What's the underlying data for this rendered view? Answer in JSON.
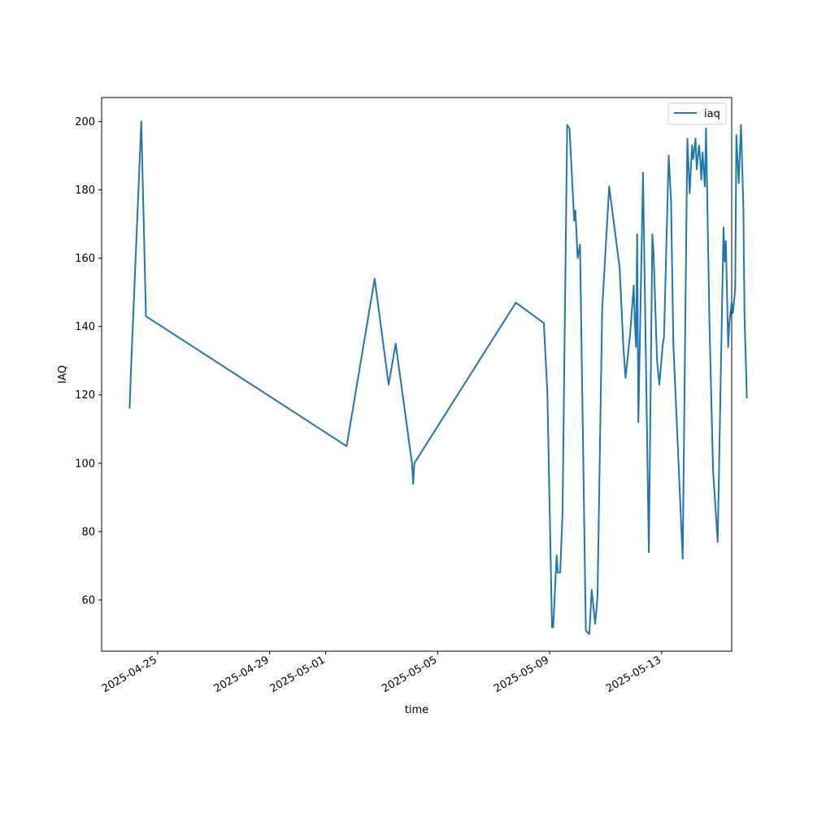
{
  "chart_data": {
    "type": "line",
    "xlabel": "time",
    "ylabel": "IAQ",
    "x_type": "time",
    "xlim": [
      "2025-04-23T00:00",
      "2025-05-15T12:00"
    ],
    "ylim": [
      45,
      207
    ],
    "xticks": [
      "2025-04-25",
      "2025-04-29",
      "2025-05-01",
      "2025-05-05",
      "2025-05-09",
      "2025-05-13"
    ],
    "yticks": [
      60,
      80,
      100,
      120,
      140,
      160,
      180,
      200
    ],
    "grid": false,
    "legend": {
      "position": "top-right",
      "entries": [
        "iaq"
      ]
    },
    "series": [
      {
        "name": "iaq",
        "color": "#1f77b4",
        "points": [
          [
            "2025-04-24T00:00",
            116
          ],
          [
            "2025-04-24T01:00",
            126
          ],
          [
            "2025-04-24T10:00",
            200
          ],
          [
            "2025-04-24T14:00",
            143
          ],
          [
            "2025-05-01T18:00",
            105
          ],
          [
            "2025-05-02T18:00",
            154
          ],
          [
            "2025-05-03T06:00",
            123
          ],
          [
            "2025-05-03T12:00",
            135
          ],
          [
            "2025-05-04T02:00",
            100
          ],
          [
            "2025-05-04T03:00",
            94
          ],
          [
            "2025-05-04T04:00",
            100
          ],
          [
            "2025-05-07T19:00",
            147
          ],
          [
            "2025-05-08T19:00",
            141
          ],
          [
            "2025-05-08T22:00",
            121
          ],
          [
            "2025-05-09T02:00",
            52
          ],
          [
            "2025-05-09T03:00",
            52
          ],
          [
            "2025-05-09T06:00",
            73
          ],
          [
            "2025-05-09T07:00",
            68
          ],
          [
            "2025-05-09T09:00",
            68
          ],
          [
            "2025-05-09T11:00",
            85
          ],
          [
            "2025-05-09T15:00",
            199
          ],
          [
            "2025-05-09T17:00",
            198
          ],
          [
            "2025-05-09T21:00",
            171
          ],
          [
            "2025-05-09T22:00",
            174
          ],
          [
            "2025-05-10T00:00",
            160
          ],
          [
            "2025-05-10T02:00",
            164
          ],
          [
            "2025-05-10T07:00",
            51
          ],
          [
            "2025-05-10T10:00",
            50
          ],
          [
            "2025-05-10T12:00",
            63
          ],
          [
            "2025-05-10T15:00",
            53
          ],
          [
            "2025-05-10T17:00",
            61
          ],
          [
            "2025-05-10T21:00",
            145
          ],
          [
            "2025-05-11T03:00",
            181
          ],
          [
            "2025-05-11T12:00",
            157
          ],
          [
            "2025-05-11T15:00",
            135
          ],
          [
            "2025-05-11T17:00",
            125
          ],
          [
            "2025-05-11T21:00",
            138
          ],
          [
            "2025-05-12T00:00",
            152
          ],
          [
            "2025-05-12T01:00",
            141
          ],
          [
            "2025-05-12T02:00",
            134
          ],
          [
            "2025-05-12T03:00",
            167
          ],
          [
            "2025-05-12T04:00",
            112
          ],
          [
            "2025-05-12T08:00",
            185
          ],
          [
            "2025-05-12T13:00",
            74
          ],
          [
            "2025-05-12T16:00",
            167
          ],
          [
            "2025-05-12T17:00",
            162
          ],
          [
            "2025-05-12T20:00",
            130
          ],
          [
            "2025-05-12T22:00",
            123
          ],
          [
            "2025-05-13T01:00",
            135
          ],
          [
            "2025-05-13T02:00",
            137
          ],
          [
            "2025-05-13T06:00",
            190
          ],
          [
            "2025-05-13T08:00",
            177
          ],
          [
            "2025-05-13T10:00",
            135
          ],
          [
            "2025-05-13T18:00",
            72
          ],
          [
            "2025-05-13T21:00",
            165
          ],
          [
            "2025-05-13T22:00",
            195
          ],
          [
            "2025-05-14T00:00",
            179
          ],
          [
            "2025-05-14T02:00",
            193
          ],
          [
            "2025-05-14T03:00",
            189
          ],
          [
            "2025-05-14T05:00",
            195
          ],
          [
            "2025-05-14T06:00",
            186
          ],
          [
            "2025-05-14T08:00",
            193
          ],
          [
            "2025-05-14T09:00",
            189
          ],
          [
            "2025-05-14T10:00",
            183
          ],
          [
            "2025-05-14T11:00",
            191
          ],
          [
            "2025-05-14T13:00",
            181
          ],
          [
            "2025-05-14T14:00",
            198
          ],
          [
            "2025-05-14T17:00",
            140
          ],
          [
            "2025-05-14T20:00",
            98
          ],
          [
            "2025-05-15T00:00",
            77
          ],
          [
            "2025-05-15T05:00",
            169
          ],
          [
            "2025-05-15T06:00",
            159
          ],
          [
            "2025-05-15T07:00",
            165
          ],
          [
            "2025-05-15T09:00",
            134
          ],
          [
            "2025-05-15T10:00",
            141
          ],
          [
            "2025-05-15T12:00",
            147
          ],
          [
            "2025-05-15T13:00",
            144
          ],
          [
            "2025-05-15T15:00",
            151
          ],
          [
            "2025-05-15T16:00",
            196
          ],
          [
            "2025-05-15T18:00",
            182
          ],
          [
            "2025-05-15T20:00",
            199
          ],
          [
            "2025-05-15T22:00",
            175
          ],
          [
            "2025-05-15T23:00",
            143
          ],
          [
            "2025-05-16T01:00",
            119
          ]
        ]
      }
    ]
  }
}
